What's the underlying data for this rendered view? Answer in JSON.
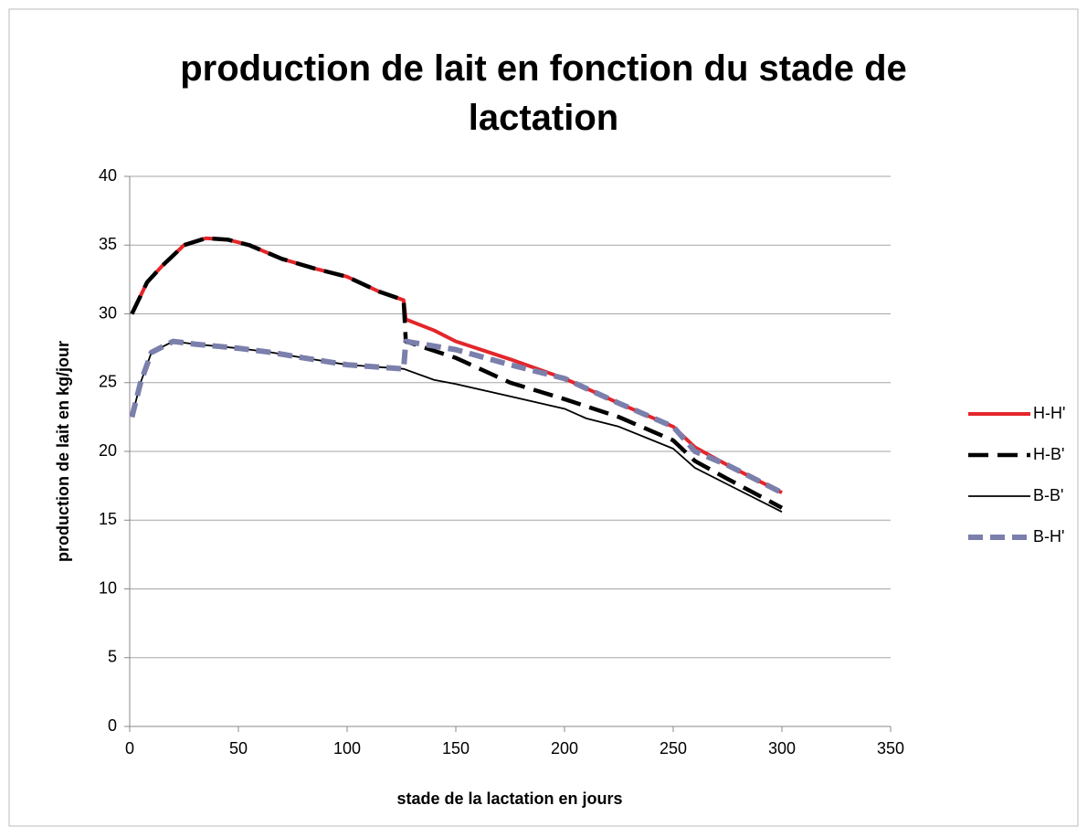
{
  "chart_data": {
    "type": "line",
    "title": "production de lait en fonction du stade de lactation",
    "x_label": "stade de la lactation en jours",
    "y_label": "production de lait en kg/jour",
    "xlim": [
      0,
      350
    ],
    "xticks": [
      0,
      50,
      100,
      150,
      200,
      250,
      300,
      350
    ],
    "ylim": [
      0,
      40
    ],
    "yticks": [
      0,
      5,
      10,
      15,
      20,
      25,
      30,
      35,
      40
    ],
    "grid": true,
    "legend": "right",
    "series": [
      {
        "name": "H-H'",
        "color": "#e3262b",
        "x": [
          1,
          8,
          15,
          25,
          35,
          45,
          55,
          70,
          85,
          100,
          115,
          126,
          127,
          140,
          150,
          175,
          200,
          225,
          250,
          260,
          275,
          300
        ],
        "values": [
          30,
          32.3,
          33.5,
          35,
          35.5,
          35.4,
          35,
          34,
          33.3,
          32.7,
          31.6,
          31,
          29.6,
          28.8,
          28,
          26.7,
          25.3,
          23.5,
          21.8,
          20.3,
          19,
          17
        ]
      },
      {
        "name": "H-B'",
        "color": "#000000",
        "x": [
          1,
          8,
          15,
          25,
          35,
          45,
          55,
          70,
          85,
          100,
          115,
          126,
          127,
          150,
          175,
          200,
          225,
          250,
          260,
          275,
          300
        ],
        "values": [
          30,
          32.3,
          33.5,
          35,
          35.5,
          35.4,
          35,
          34,
          33.3,
          32.7,
          31.6,
          31,
          28,
          26.8,
          25,
          23.8,
          22.5,
          20.8,
          19.3,
          18,
          15.9
        ]
      },
      {
        "name": "B-B'",
        "color": "#000000",
        "x": [
          1,
          5,
          10,
          20,
          30,
          50,
          65,
          80,
          100,
          126,
          140,
          150,
          175,
          200,
          210,
          225,
          250,
          260,
          275,
          300
        ],
        "values": [
          22.5,
          25,
          27.2,
          28,
          27.8,
          27.5,
          27.2,
          26.8,
          26.3,
          26,
          25.2,
          24.9,
          24,
          23.1,
          22.4,
          21.8,
          20.2,
          18.8,
          17.6,
          15.6
        ]
      },
      {
        "name": "B-H'",
        "color": "#7b7fac",
        "x": [
          1,
          5,
          10,
          20,
          30,
          50,
          65,
          80,
          100,
          126,
          127,
          150,
          175,
          200,
          225,
          250,
          260,
          275,
          300
        ],
        "values": [
          22.5,
          25,
          27.2,
          28,
          27.8,
          27.5,
          27.2,
          26.8,
          26.3,
          26,
          28,
          27.4,
          26.3,
          25.3,
          23.5,
          21.8,
          20,
          19,
          17
        ]
      }
    ]
  }
}
